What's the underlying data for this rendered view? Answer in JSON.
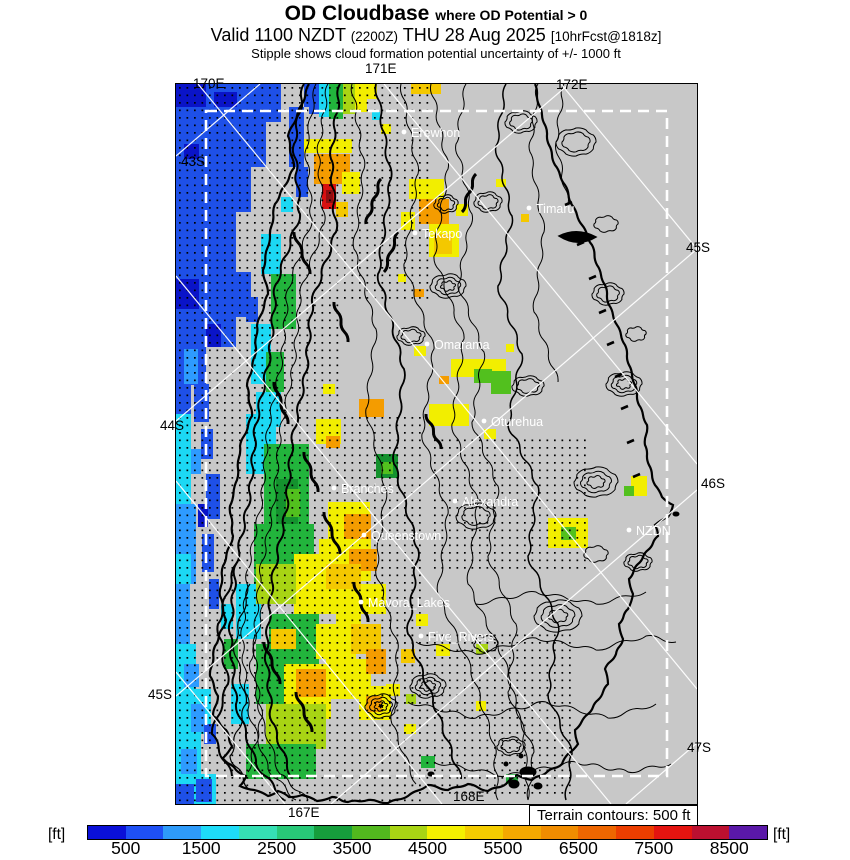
{
  "header": {
    "title": "OD Cloudbase",
    "title_qualifier": "where OD Potential > 0",
    "valid_prefix": "Valid 1100 NZDT",
    "valid_utc": "(2200Z)",
    "valid_date": "THU 28 Aug 2025",
    "valid_fcst": "[10hrFcst@1818z]",
    "subtitle": "Stipple shows cloud formation potential uncertainty of +/- 1000 ft"
  },
  "map": {
    "grid_labels": {
      "top": [
        "170E",
        "171E",
        "172E"
      ],
      "left": [
        "43S",
        "44S",
        "45S"
      ],
      "right": [
        "45S",
        "46S",
        "47S"
      ],
      "bottom": [
        "167E",
        "168E"
      ]
    },
    "cities": [
      {
        "name": "Erewhon"
      },
      {
        "name": "Timaru"
      },
      {
        "name": "Tekapo"
      },
      {
        "name": "Omarama"
      },
      {
        "name": "Oturehua"
      },
      {
        "name": "Branches"
      },
      {
        "name": "Alexandra"
      },
      {
        "name": "Queenstown"
      },
      {
        "name": "NZDN"
      },
      {
        "name": "Mavora_Lakes"
      },
      {
        "name": "Five_Rivers"
      }
    ],
    "terrain_note": "Terrain contours: 500 ft",
    "background_color": "#c8c8c8",
    "land_contour_color": "#000000",
    "graticule_color": "#ffffff",
    "inner_domain_style": "white dashed box"
  },
  "colorbar": {
    "unit_left": "[ft]",
    "unit_right": "[ft]",
    "ticks": [
      "500",
      "1500",
      "2500",
      "3500",
      "4500",
      "5500",
      "6500",
      "7500",
      "8500"
    ],
    "segment_span_ft": 500,
    "colors": [
      "#0a10d8",
      "#1e50f5",
      "#2e9bfa",
      "#1edcf8",
      "#35e0b4",
      "#28c878",
      "#169e3c",
      "#52b81e",
      "#a8d414",
      "#f4f000",
      "#f4cc00",
      "#f4a800",
      "#f08c00",
      "#ee6600",
      "#ec3e00",
      "#e41410",
      "#bc1030",
      "#5a18a8"
    ]
  }
}
